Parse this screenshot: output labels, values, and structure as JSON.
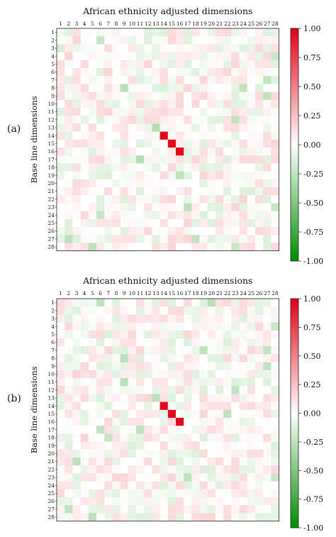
{
  "chart_data": [
    {
      "panel_label": "(a)",
      "type": "heatmap",
      "title": "African ethnicity adjusted dimensions",
      "xlabel": "",
      "ylabel": "Base line dimensions",
      "x": [
        1,
        2,
        3,
        4,
        5,
        6,
        7,
        8,
        9,
        10,
        11,
        12,
        13,
        14,
        15,
        16,
        17,
        18,
        19,
        20,
        21,
        22,
        23,
        24,
        25,
        26,
        27,
        28
      ],
      "y": [
        1,
        2,
        3,
        4,
        5,
        6,
        7,
        8,
        9,
        10,
        11,
        12,
        13,
        14,
        15,
        16,
        17,
        18,
        19,
        20,
        21,
        22,
        23,
        24,
        25,
        26,
        27,
        28
      ],
      "colorbar": {
        "range": [
          -1.0,
          1.0
        ],
        "ticks": [
          "1.00",
          "0.75",
          "0.50",
          "0.25",
          "0.00",
          "-0.25",
          "-0.50",
          "-0.75",
          "-1.00"
        ],
        "tick_values": [
          1,
          0.75,
          0.5,
          0.25,
          0,
          -0.25,
          -0.5,
          -0.75,
          -1
        ]
      },
      "strong_cells": [
        {
          "row": 14,
          "col": 14,
          "value": 0.97
        },
        {
          "row": 15,
          "col": 15,
          "value": 0.95
        },
        {
          "row": 16,
          "col": 16,
          "value": 0.96
        }
      ],
      "notable_cells": [
        {
          "row": 2,
          "col": 6,
          "value": -0.22
        },
        {
          "row": 8,
          "col": 9,
          "value": -0.28
        },
        {
          "row": 8,
          "col": 24,
          "value": -0.25
        },
        {
          "row": 7,
          "col": 27,
          "value": -0.24
        },
        {
          "row": 9,
          "col": 27,
          "value": -0.24
        },
        {
          "row": 12,
          "col": 23,
          "value": -0.24
        },
        {
          "row": 13,
          "col": 13,
          "value": -0.3
        },
        {
          "row": 17,
          "col": 11,
          "value": -0.3
        },
        {
          "row": 19,
          "col": 16,
          "value": -0.25
        },
        {
          "row": 23,
          "col": 17,
          "value": -0.26
        },
        {
          "row": 23,
          "col": 28,
          "value": -0.22
        },
        {
          "row": 24,
          "col": 6,
          "value": -0.22
        },
        {
          "row": 27,
          "col": 2,
          "value": -0.26
        },
        {
          "row": 27,
          "col": 18,
          "value": -0.24
        },
        {
          "row": 28,
          "col": 5,
          "value": -0.26
        },
        {
          "row": 28,
          "col": 23,
          "value": -0.22
        },
        {
          "row": 4,
          "col": 28,
          "value": -0.2
        },
        {
          "row": 3,
          "col": 1,
          "value": -0.16
        }
      ],
      "background_value_range": [
        -0.15,
        0.15
      ],
      "seed": 11
    },
    {
      "panel_label": "(b)",
      "type": "heatmap",
      "title": "African ethnicity adjusted dimensions",
      "xlabel": "",
      "ylabel": "Base line dimensions",
      "x": [
        1,
        2,
        3,
        4,
        5,
        6,
        7,
        8,
        9,
        10,
        11,
        12,
        13,
        14,
        15,
        16,
        17,
        18,
        19,
        20,
        21,
        22,
        23,
        24,
        25,
        26,
        27,
        28
      ],
      "y": [
        1,
        2,
        3,
        4,
        5,
        6,
        7,
        8,
        9,
        10,
        11,
        12,
        13,
        14,
        15,
        16,
        17,
        18,
        19,
        20,
        21,
        22,
        23,
        24,
        25,
        26,
        27,
        28
      ],
      "colorbar": {
        "range": [
          -1.0,
          1.0
        ],
        "ticks": [
          "1.00",
          "0.75",
          "0.50",
          "0.25",
          "0.00",
          "-0.25",
          "-0.50",
          "-0.75",
          "-1.00"
        ],
        "tick_values": [
          1,
          0.75,
          0.5,
          0.25,
          0,
          -0.25,
          -0.5,
          -0.75,
          -1
        ]
      },
      "strong_cells": [
        {
          "row": 14,
          "col": 14,
          "value": 0.97
        },
        {
          "row": 15,
          "col": 15,
          "value": 0.95
        },
        {
          "row": 16,
          "col": 16,
          "value": 0.96
        }
      ],
      "notable_cells": [
        {
          "row": 1,
          "col": 6,
          "value": -0.25
        },
        {
          "row": 1,
          "col": 20,
          "value": -0.28
        },
        {
          "row": 4,
          "col": 28,
          "value": -0.22
        },
        {
          "row": 7,
          "col": 19,
          "value": -0.25
        },
        {
          "row": 7,
          "col": 27,
          "value": -0.24
        },
        {
          "row": 8,
          "col": 9,
          "value": -0.27
        },
        {
          "row": 9,
          "col": 27,
          "value": -0.24
        },
        {
          "row": 11,
          "col": 9,
          "value": -0.27
        },
        {
          "row": 12,
          "col": 23,
          "value": -0.24
        },
        {
          "row": 13,
          "col": 13,
          "value": -0.26
        },
        {
          "row": 15,
          "col": 22,
          "value": -0.25
        },
        {
          "row": 17,
          "col": 6,
          "value": -0.24
        },
        {
          "row": 17,
          "col": 11,
          "value": -0.25
        },
        {
          "row": 18,
          "col": 7,
          "value": -0.22
        },
        {
          "row": 21,
          "col": 3,
          "value": -0.26
        },
        {
          "row": 23,
          "col": 17,
          "value": -0.25
        },
        {
          "row": 23,
          "col": 28,
          "value": -0.22
        },
        {
          "row": 27,
          "col": 2,
          "value": -0.24
        },
        {
          "row": 28,
          "col": 5,
          "value": -0.26
        }
      ],
      "background_value_range": [
        -0.15,
        0.15
      ],
      "seed": 29
    }
  ]
}
